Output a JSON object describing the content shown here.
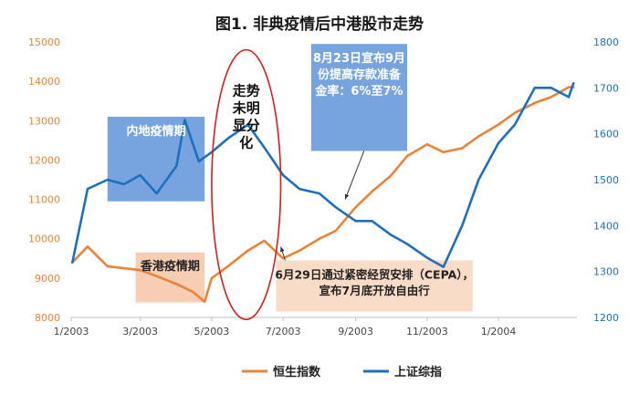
{
  "chart_data": {
    "type": "line",
    "title": "图1. 非典疫情后中港股市走势",
    "x_ticks": [
      "1/2003",
      "3/2003",
      "5/2003",
      "7/2003",
      "9/2003",
      "11/2003",
      "1/2004"
    ],
    "y_left": {
      "range": [
        8000,
        15000
      ],
      "ticks": [
        8000,
        9000,
        10000,
        11000,
        12000,
        13000,
        14000,
        15000
      ],
      "color": "#e8833a"
    },
    "y_right": {
      "range": [
        1200,
        1800
      ],
      "ticks": [
        1200,
        1300,
        1400,
        1500,
        1600,
        1700,
        1800
      ],
      "color": "#1f6fbf"
    },
    "series": [
      {
        "name": "恒生指数",
        "axis": "left",
        "color": "#e8833a",
        "x": [
          "2003-01-02",
          "2003-01-15",
          "2003-02-01",
          "2003-02-15",
          "2003-03-01",
          "2003-03-15",
          "2003-04-01",
          "2003-04-15",
          "2003-04-25",
          "2003-05-01",
          "2003-05-15",
          "2003-06-01",
          "2003-06-15",
          "2003-07-01",
          "2003-07-15",
          "2003-08-01",
          "2003-08-15",
          "2003-09-01",
          "2003-09-15",
          "2003-10-01",
          "2003-10-15",
          "2003-11-01",
          "2003-11-15",
          "2003-12-01",
          "2003-12-15",
          "2004-01-01",
          "2004-01-15",
          "2004-02-01",
          "2004-02-15",
          "2004-03-01",
          "2004-03-05"
        ],
        "values": [
          9400,
          9800,
          9300,
          9250,
          9200,
          9050,
          8850,
          8650,
          8400,
          9000,
          9300,
          9700,
          9950,
          9500,
          9700,
          10000,
          10200,
          10800,
          11200,
          11600,
          12100,
          12400,
          12200,
          12300,
          12600,
          12900,
          13200,
          13450,
          13600,
          13850,
          13850
        ]
      },
      {
        "name": "上证综指",
        "axis": "right",
        "color": "#1f6fbf",
        "x": [
          "2003-01-02",
          "2003-01-15",
          "2003-02-01",
          "2003-02-15",
          "2003-03-01",
          "2003-03-15",
          "2003-04-01",
          "2003-04-08",
          "2003-04-20",
          "2003-05-01",
          "2003-05-15",
          "2003-06-01",
          "2003-06-15",
          "2003-07-01",
          "2003-07-15",
          "2003-08-01",
          "2003-08-15",
          "2003-09-01",
          "2003-09-15",
          "2003-10-01",
          "2003-10-15",
          "2003-11-01",
          "2003-11-15",
          "2003-12-01",
          "2003-12-15",
          "2004-01-01",
          "2004-01-15",
          "2004-02-01",
          "2004-02-15",
          "2004-03-01",
          "2004-03-05"
        ],
        "values": [
          1320,
          1480,
          1500,
          1490,
          1510,
          1470,
          1530,
          1630,
          1540,
          1560,
          1590,
          1620,
          1570,
          1510,
          1480,
          1470,
          1440,
          1410,
          1410,
          1380,
          1360,
          1330,
          1310,
          1400,
          1500,
          1580,
          1620,
          1700,
          1700,
          1680,
          1710
        ]
      }
    ],
    "annotations": [
      {
        "id": "mainland",
        "text": [
          "内地疫情期"
        ],
        "x_range": [
          "2003-02-01",
          "2003-04-25"
        ],
        "y_range": [
          10950,
          13100
        ],
        "axis": "left",
        "fill": "#4a86d4",
        "opacity": 0.75,
        "text_color": "#ffffff"
      },
      {
        "id": "hk",
        "text": [
          "香港疫情期"
        ],
        "x_range": [
          "2003-02-25",
          "2003-04-25"
        ],
        "y_range": [
          8380,
          9650
        ],
        "axis": "left",
        "fill": "#f5c2a0",
        "opacity": 0.8,
        "text_color": "#222222"
      },
      {
        "id": "rrr",
        "text": [
          "8月23日宣布9月",
          "份提高存款准备",
          "金率：6%至7%"
        ],
        "x_range": [
          "2003-07-25",
          "2003-10-15"
        ],
        "y_range": [
          12230,
          14950
        ],
        "axis": "left",
        "fill": "#4a86d4",
        "opacity": 0.75,
        "text_color": "#ffffff",
        "arrow_to": [
          "2003-08-23",
          11000
        ]
      },
      {
        "id": "cepa",
        "text": [
          "6月29日通过紧密经贸安排（CEPA），",
          "宣布7月底开放自由行"
        ],
        "x_range": [
          "2003-06-25",
          "2003-12-10"
        ],
        "y_range": [
          8150,
          9450
        ],
        "axis": "left",
        "fill": "#f8d6bd",
        "opacity": 0.85,
        "text_color": "#222222",
        "arrow_to": [
          "2003-06-29",
          9800
        ]
      },
      {
        "id": "trend",
        "text": [
          "走势",
          "未明",
          "显分",
          "化"
        ],
        "shape": "ellipse",
        "x_range": [
          "2003-05-01",
          "2003-06-29"
        ],
        "y_range": [
          7950,
          14800
        ],
        "axis": "left",
        "stroke": "#d21f1f"
      }
    ],
    "legend": {
      "position": "bottom",
      "entries": [
        "恒生指数",
        "上证综指"
      ]
    }
  }
}
